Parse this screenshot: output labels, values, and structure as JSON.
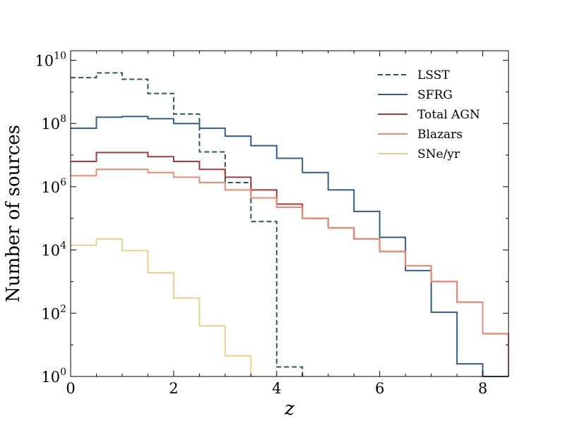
{
  "chart_data": {
    "type": "histogram-step",
    "title": "",
    "xlabel": "z",
    "ylabel": "Number of sources",
    "xlim": [
      0,
      8.5
    ],
    "ylim_log10": [
      0,
      10.3
    ],
    "yscale": "log",
    "grid": false,
    "legend_position": "top-right",
    "x_ticks": [
      {
        "value": 0,
        "label": "0"
      },
      {
        "value": 2,
        "label": "2"
      },
      {
        "value": 4,
        "label": "4"
      },
      {
        "value": 6,
        "label": "6"
      },
      {
        "value": 8,
        "label": "8"
      }
    ],
    "y_ticks": [
      {
        "exp": 0,
        "base": "10",
        "power": "0"
      },
      {
        "exp": 2,
        "base": "10",
        "power": "2"
      },
      {
        "exp": 4,
        "base": "10",
        "power": "4"
      },
      {
        "exp": 6,
        "base": "10",
        "power": "6"
      },
      {
        "exp": 8,
        "base": "10",
        "power": "8"
      },
      {
        "exp": 10,
        "base": "10",
        "power": "10"
      }
    ],
    "bin_edges": [
      0,
      0.5,
      1,
      1.5,
      2,
      2.5,
      3,
      3.5,
      4,
      4.5,
      5,
      5.5,
      6,
      6.5,
      7,
      7.5,
      8,
      8.5
    ],
    "series": [
      {
        "name": "LSST",
        "color": "#2a5e45",
        "dash": true,
        "width": 2,
        "log10_values": [
          9.45,
          9.6,
          9.4,
          8.95,
          8.3,
          7.1,
          6.13,
          4.9,
          0.3
        ]
      },
      {
        "name": "SFRG",
        "color": "#2f5f8a",
        "dash": false,
        "width": 2,
        "log10_values": [
          7.85,
          8.2,
          8.22,
          8.15,
          8.0,
          7.85,
          7.6,
          7.3,
          6.9,
          6.45,
          5.9,
          5.22,
          4.4,
          3.35,
          2.03,
          0.4,
          0.0
        ]
      },
      {
        "name": "Total AGN",
        "color": "#a8393c",
        "dash": false,
        "width": 2,
        "log10_values": [
          6.8,
          7.08,
          7.08,
          6.95,
          6.8,
          6.55,
          6.3,
          5.9,
          5.45,
          5.0,
          4.7,
          4.35,
          3.95,
          3.5,
          3.0,
          2.35,
          1.35
        ]
      },
      {
        "name": "Blazars",
        "color": "#f08770",
        "dash": false,
        "width": 2,
        "log10_values": [
          6.35,
          6.55,
          6.55,
          6.45,
          6.3,
          6.13,
          5.9,
          5.65,
          5.35,
          5.0,
          4.7,
          4.35,
          3.95,
          3.5,
          3.0,
          2.35,
          1.35
        ]
      },
      {
        "name": "SNe/yr",
        "color": "#ecd089",
        "dash": false,
        "width": 2,
        "log10_values": [
          4.15,
          4.35,
          3.98,
          3.28,
          2.48,
          1.6,
          0.65,
          null
        ]
      }
    ]
  }
}
